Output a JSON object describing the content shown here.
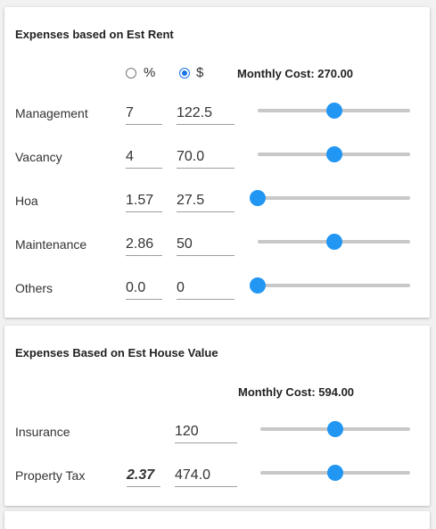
{
  "rent_section": {
    "title": "Expenses based on Est Rent",
    "unit_options": [
      {
        "label": "%",
        "selected": false
      },
      {
        "label": "$",
        "selected": true
      }
    ],
    "monthly_cost_label": "Monthly Cost: 270.00",
    "rows": [
      {
        "label": "Management",
        "percent": "7",
        "amount": "122.5",
        "slider_level": 0.5
      },
      {
        "label": "Vacancy",
        "percent": "4",
        "amount": "70.0",
        "slider_level": 0.5
      },
      {
        "label": "Hoa",
        "percent": "1.57",
        "amount": "27.5",
        "slider_level": 0.0
      },
      {
        "label": "Maintenance",
        "percent": "2.86",
        "amount": "50",
        "slider_level": 0.5
      },
      {
        "label": "Others",
        "percent": "0.0",
        "amount": "0",
        "slider_level": 0.0
      }
    ]
  },
  "house_section": {
    "title": "Expenses Based on Est House Value",
    "monthly_cost_label": "Monthly Cost: 594.00",
    "rows": [
      {
        "label": "Insurance",
        "percent": "",
        "amount": "120",
        "slider_level": 0.5
      },
      {
        "label": "Property Tax",
        "percent": "2.37",
        "amount": "474.0",
        "slider_level": 0.5
      }
    ]
  },
  "colors": {
    "accent": "#2196f3",
    "track": "#c8c8c8",
    "background": "#f1f1f1",
    "card": "#ffffff"
  }
}
